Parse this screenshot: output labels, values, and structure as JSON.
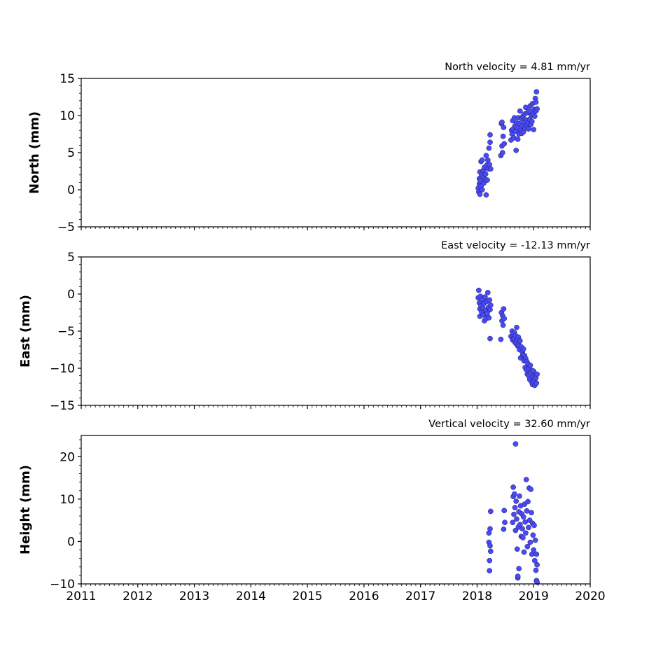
{
  "chart_data": [
    {
      "type": "scatter",
      "title": "North velocity = 4.81 mm/yr",
      "ylabel": "North (mm)",
      "xlim": [
        2011,
        2020
      ],
      "ylim": [
        -5,
        15
      ],
      "yticks": [
        -5,
        0,
        5,
        10,
        15
      ],
      "ytick_labels": [
        "−5",
        "0",
        "5",
        "10",
        "15"
      ],
      "grid": false,
      "marker_color": "#4a4af5",
      "points": [
        [
          2018.02,
          0.2
        ],
        [
          2018.03,
          -0.3
        ],
        [
          2018.04,
          1.5
        ],
        [
          2018.04,
          0.8
        ],
        [
          2018.05,
          2.4
        ],
        [
          2018.05,
          -0.6
        ],
        [
          2018.06,
          1.2
        ],
        [
          2018.07,
          3.8
        ],
        [
          2018.07,
          0.5
        ],
        [
          2018.08,
          2.0
        ],
        [
          2018.09,
          4.0
        ],
        [
          2018.09,
          0.0
        ],
        [
          2018.1,
          1.7
        ],
        [
          2018.11,
          2.6
        ],
        [
          2018.12,
          0.9
        ],
        [
          2018.13,
          3.0
        ],
        [
          2018.14,
          1.4
        ],
        [
          2018.15,
          2.1
        ],
        [
          2018.16,
          -0.7
        ],
        [
          2018.16,
          4.6
        ],
        [
          2018.17,
          3.3
        ],
        [
          2018.18,
          1.3
        ],
        [
          2018.19,
          4.0
        ],
        [
          2018.2,
          2.8
        ],
        [
          2018.21,
          5.6
        ],
        [
          2018.22,
          3.4
        ],
        [
          2018.23,
          6.4
        ],
        [
          2018.23,
          7.4
        ],
        [
          2018.24,
          2.8
        ],
        [
          2018.42,
          4.6
        ],
        [
          2018.43,
          8.9
        ],
        [
          2018.44,
          5.9
        ],
        [
          2018.44,
          9.1
        ],
        [
          2018.45,
          5.0
        ],
        [
          2018.46,
          7.2
        ],
        [
          2018.47,
          8.4
        ],
        [
          2018.48,
          6.2
        ],
        [
          2018.6,
          6.7
        ],
        [
          2018.61,
          8.0
        ],
        [
          2018.62,
          7.5
        ],
        [
          2018.63,
          9.3
        ],
        [
          2018.64,
          8.2
        ],
        [
          2018.65,
          7.0
        ],
        [
          2018.66,
          9.7
        ],
        [
          2018.67,
          8.6
        ],
        [
          2018.68,
          7.9
        ],
        [
          2018.69,
          5.3
        ],
        [
          2018.7,
          9.0
        ],
        [
          2018.71,
          8.4
        ],
        [
          2018.72,
          6.8
        ],
        [
          2018.73,
          9.7
        ],
        [
          2018.74,
          7.5
        ],
        [
          2018.75,
          8.9
        ],
        [
          2018.76,
          10.6
        ],
        [
          2018.77,
          8.0
        ],
        [
          2018.78,
          9.6
        ],
        [
          2018.79,
          7.6
        ],
        [
          2018.8,
          8.6
        ],
        [
          2018.81,
          9.9
        ],
        [
          2018.82,
          7.8
        ],
        [
          2018.83,
          9.1
        ],
        [
          2018.84,
          10.2
        ],
        [
          2018.85,
          8.3
        ],
        [
          2018.86,
          11.1
        ],
        [
          2018.87,
          9.4
        ],
        [
          2018.88,
          8.6
        ],
        [
          2018.89,
          10.4
        ],
        [
          2018.9,
          9.0
        ],
        [
          2018.91,
          8.2
        ],
        [
          2018.92,
          10.6
        ],
        [
          2018.93,
          9.5
        ],
        [
          2018.94,
          11.3
        ],
        [
          2018.95,
          8.8
        ],
        [
          2018.96,
          10.0
        ],
        [
          2018.97,
          9.2
        ],
        [
          2018.98,
          11.6
        ],
        [
          2018.99,
          10.2
        ],
        [
          2019.0,
          8.1
        ],
        [
          2019.01,
          10.8
        ],
        [
          2019.02,
          9.9
        ],
        [
          2019.03,
          12.3
        ],
        [
          2019.04,
          10.6
        ],
        [
          2019.04,
          11.8
        ],
        [
          2019.05,
          13.2
        ],
        [
          2019.06,
          10.9
        ]
      ]
    },
    {
      "type": "scatter",
      "title": "East velocity = -12.13 mm/yr",
      "ylabel": "East (mm)",
      "xlim": [
        2011,
        2020
      ],
      "ylim": [
        -15,
        5
      ],
      "yticks": [
        -15,
        -10,
        -5,
        0,
        5
      ],
      "ytick_labels": [
        "−15",
        "−10",
        "−5",
        "0",
        "5"
      ],
      "grid": false,
      "marker_color": "#4a4af5",
      "points": [
        [
          2018.02,
          -0.5
        ],
        [
          2018.03,
          0.5
        ],
        [
          2018.04,
          -1.2
        ],
        [
          2018.05,
          -2.0
        ],
        [
          2018.05,
          -3.0
        ],
        [
          2018.06,
          -0.3
        ],
        [
          2018.07,
          -1.6
        ],
        [
          2018.08,
          -2.4
        ],
        [
          2018.09,
          -0.7
        ],
        [
          2018.1,
          -1.9
        ],
        [
          2018.11,
          -2.8
        ],
        [
          2018.12,
          -1.3
        ],
        [
          2018.13,
          -3.6
        ],
        [
          2018.14,
          -0.4
        ],
        [
          2018.15,
          -2.2
        ],
        [
          2018.16,
          -3.3
        ],
        [
          2018.17,
          -1.0
        ],
        [
          2018.18,
          -2.6
        ],
        [
          2018.19,
          0.2
        ],
        [
          2018.2,
          -1.8
        ],
        [
          2018.21,
          -3.2
        ],
        [
          2018.22,
          -0.8
        ],
        [
          2018.23,
          -2.1
        ],
        [
          2018.23,
          -6.0
        ],
        [
          2018.24,
          -1.5
        ],
        [
          2018.42,
          -6.1
        ],
        [
          2018.43,
          -2.5
        ],
        [
          2018.44,
          -3.6
        ],
        [
          2018.45,
          -2.9
        ],
        [
          2018.46,
          -4.2
        ],
        [
          2018.47,
          -2.0
        ],
        [
          2018.48,
          -3.3
        ],
        [
          2018.6,
          -5.7
        ],
        [
          2018.62,
          -5.0
        ],
        [
          2018.63,
          -6.2
        ],
        [
          2018.64,
          -5.4
        ],
        [
          2018.65,
          -6.0
        ],
        [
          2018.66,
          -5.2
        ],
        [
          2018.67,
          -6.5
        ],
        [
          2018.68,
          -5.6
        ],
        [
          2018.69,
          -6.7
        ],
        [
          2018.7,
          -4.5
        ],
        [
          2018.71,
          -6.1
        ],
        [
          2018.72,
          -7.0
        ],
        [
          2018.73,
          -5.8
        ],
        [
          2018.74,
          -6.9
        ],
        [
          2018.75,
          -7.5
        ],
        [
          2018.76,
          -6.3
        ],
        [
          2018.77,
          -8.6
        ],
        [
          2018.78,
          -7.1
        ],
        [
          2018.8,
          -7.8
        ],
        [
          2018.81,
          -8.2
        ],
        [
          2018.82,
          -7.4
        ],
        [
          2018.83,
          -9.0
        ],
        [
          2018.84,
          -8.3
        ],
        [
          2018.85,
          -9.9
        ],
        [
          2018.86,
          -8.7
        ],
        [
          2018.87,
          -10.2
        ],
        [
          2018.88,
          -9.1
        ],
        [
          2018.89,
          -10.8
        ],
        [
          2018.9,
          -9.4
        ],
        [
          2018.91,
          -11.0
        ],
        [
          2018.92,
          -10.0
        ],
        [
          2018.93,
          -11.5
        ],
        [
          2018.94,
          -9.6
        ],
        [
          2018.95,
          -10.6
        ],
        [
          2018.96,
          -11.8
        ],
        [
          2018.97,
          -10.3
        ],
        [
          2018.98,
          -12.2
        ],
        [
          2018.99,
          -11.1
        ],
        [
          2019.0,
          -10.4
        ],
        [
          2019.01,
          -11.6
        ],
        [
          2019.02,
          -12.3
        ],
        [
          2019.03,
          -10.9
        ],
        [
          2019.04,
          -11.3
        ],
        [
          2019.05,
          -12.0
        ],
        [
          2019.06,
          -10.8
        ]
      ]
    },
    {
      "type": "scatter",
      "title": "Vertical velocity = 32.60 mm/yr",
      "ylabel": "Height (mm)",
      "xlabel": "",
      "xlim": [
        2011,
        2020
      ],
      "ylim": [
        -10,
        25
      ],
      "yticks": [
        -10,
        0,
        10,
        20
      ],
      "ytick_labels": [
        "−10",
        "0",
        "10",
        "20"
      ],
      "xticks": [
        2011,
        2012,
        2013,
        2014,
        2015,
        2016,
        2017,
        2018,
        2019,
        2020
      ],
      "xtick_labels": [
        "2011",
        "2012",
        "2013",
        "2014",
        "2015",
        "2016",
        "2017",
        "2018",
        "2019",
        "2020"
      ],
      "grid": false,
      "marker_color": "#4a4af5",
      "points": [
        [
          2018.21,
          2.0
        ],
        [
          2018.21,
          -0.2
        ],
        [
          2018.22,
          -4.5
        ],
        [
          2018.22,
          -6.9
        ],
        [
          2018.23,
          3.0
        ],
        [
          2018.23,
          -1.0
        ],
        [
          2018.24,
          7.1
        ],
        [
          2018.24,
          -2.3
        ],
        [
          2018.47,
          2.9
        ],
        [
          2018.48,
          7.3
        ],
        [
          2018.49,
          4.5
        ],
        [
          2018.63,
          4.5
        ],
        [
          2018.64,
          12.8
        ],
        [
          2018.64,
          10.6
        ],
        [
          2018.65,
          6.4
        ],
        [
          2018.66,
          11.2
        ],
        [
          2018.67,
          8.0
        ],
        [
          2018.68,
          23.0
        ],
        [
          2018.68,
          2.6
        ],
        [
          2018.69,
          9.5
        ],
        [
          2018.7,
          5.3
        ],
        [
          2018.71,
          -1.8
        ],
        [
          2018.72,
          -8.6
        ],
        [
          2018.72,
          -8.2
        ],
        [
          2018.73,
          3.4
        ],
        [
          2018.74,
          -6.4
        ],
        [
          2018.74,
          7.0
        ],
        [
          2018.75,
          10.7
        ],
        [
          2018.76,
          4.0
        ],
        [
          2018.77,
          8.4
        ],
        [
          2018.78,
          1.2
        ],
        [
          2018.79,
          6.5
        ],
        [
          2018.8,
          3.0
        ],
        [
          2018.81,
          0.9
        ],
        [
          2018.82,
          5.8
        ],
        [
          2018.83,
          -2.5
        ],
        [
          2018.84,
          8.8
        ],
        [
          2018.85,
          4.6
        ],
        [
          2018.86,
          2.0
        ],
        [
          2018.87,
          14.6
        ],
        [
          2018.88,
          7.2
        ],
        [
          2018.89,
          -1.2
        ],
        [
          2018.9,
          9.4
        ],
        [
          2018.91,
          3.3
        ],
        [
          2018.92,
          12.6
        ],
        [
          2018.93,
          5.0
        ],
        [
          2018.94,
          -0.2
        ],
        [
          2018.95,
          12.3
        ],
        [
          2018.96,
          6.8
        ],
        [
          2018.97,
          -3.0
        ],
        [
          2018.98,
          4.3
        ],
        [
          2018.99,
          1.5
        ],
        [
          2019.0,
          -2.0
        ],
        [
          2019.01,
          3.8
        ],
        [
          2019.02,
          -4.5
        ],
        [
          2019.03,
          0.3
        ],
        [
          2019.04,
          -6.8
        ],
        [
          2019.05,
          -9.2
        ],
        [
          2019.05,
          -3.0
        ],
        [
          2019.06,
          -9.6
        ],
        [
          2019.06,
          -5.5
        ]
      ]
    }
  ]
}
